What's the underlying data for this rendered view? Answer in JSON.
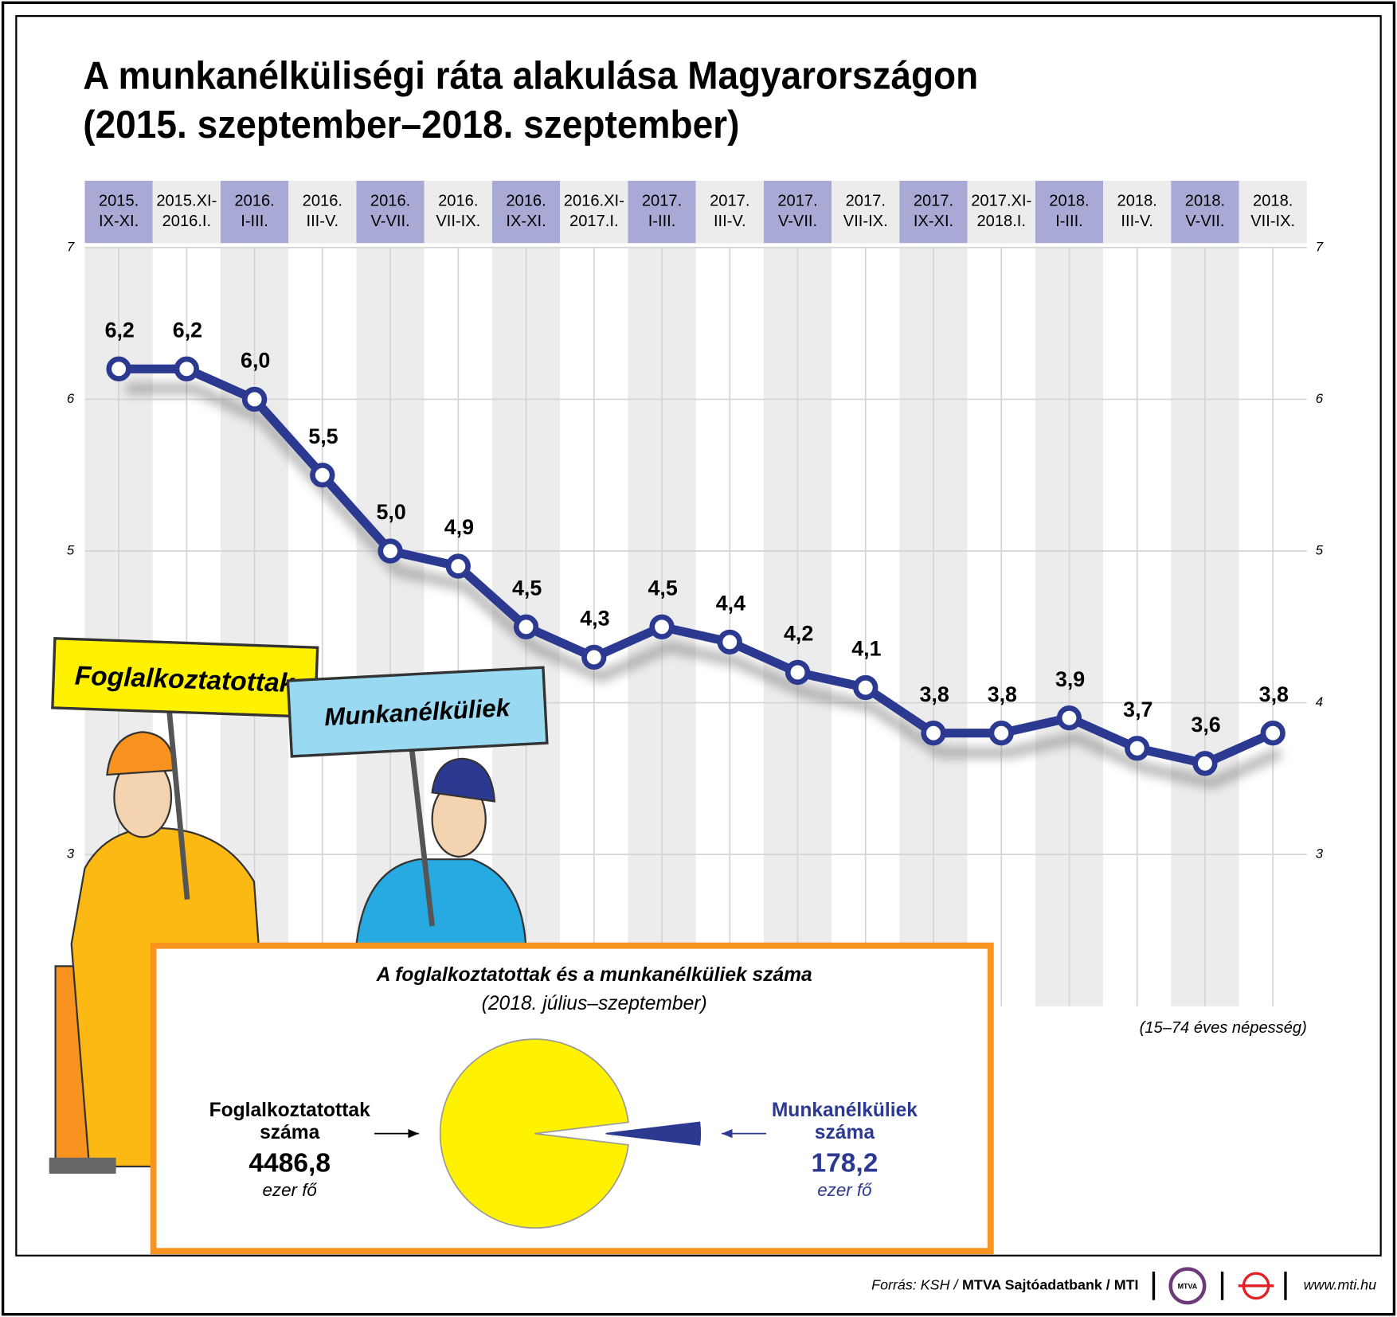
{
  "chart_data": [
    {
      "type": "line",
      "title": "A munkanélküliségi ráta alakulása Magyarországon",
      "subtitle": "(2015. szeptember–2018. szeptember)",
      "categories": [
        "2015.\nIX-XI.",
        "2015.XI-\n2016.I.",
        "2016.\nI-III.",
        "2016.\nIII-V.",
        "2016.\nV-VII.",
        "2016.\nVII-IX.",
        "2016.\nIX-XI.",
        "2016.XI-\n2017.I.",
        "2017.\nI-III.",
        "2017.\nIII-V.",
        "2017.\nV-VII.",
        "2017.\nVII-IX.",
        "2017.\nIX-XI.",
        "2017.XI-\n2018.I.",
        "2018.\nI-III.",
        "2018.\nIII-V.",
        "2018.\nV-VII.",
        "2018.\nVII-IX."
      ],
      "values": [
        6.2,
        6.2,
        6.0,
        5.5,
        5.0,
        4.9,
        4.5,
        4.3,
        4.5,
        4.4,
        4.2,
        4.1,
        3.8,
        3.8,
        3.9,
        3.7,
        3.6,
        3.8
      ],
      "value_labels": [
        "6,2",
        "6,2",
        "6,0",
        "5,5",
        "5,0",
        "4,9",
        "4,5",
        "4,3",
        "4,5",
        "4,4",
        "4,2",
        "4,1",
        "3,8",
        "3,8",
        "3,9",
        "3,7",
        "3,6",
        "3,8"
      ],
      "color": "#2b3990",
      "ylim": [
        2,
        7
      ],
      "yticks": [
        3,
        4,
        5,
        6,
        7
      ],
      "grid": true,
      "note": "(15–74 éves népesség)"
    },
    {
      "type": "pie",
      "title": "A foglalkoztatottak és a munkanélküliek száma",
      "subtitle": "(2018. július–szeptember)",
      "categories": [
        "Foglalkoztatottak\nszáma",
        "Munkanélküliek\nszáma"
      ],
      "values": [
        4486.8,
        178.2
      ],
      "value_labels": [
        "4486,8",
        "178,2"
      ],
      "unit": "ezer fő",
      "colors": [
        "#fff200",
        "#2b3990"
      ]
    }
  ],
  "illustration": {
    "signs": [
      "Foglalkoztatottak",
      "Munkanélküliek"
    ]
  },
  "footer": {
    "source": "Forrás: KSH /",
    "source_bold": "MTVA Sajtóadatbank / MTI",
    "logo": "MTVA",
    "website": "www.mti.hu"
  }
}
